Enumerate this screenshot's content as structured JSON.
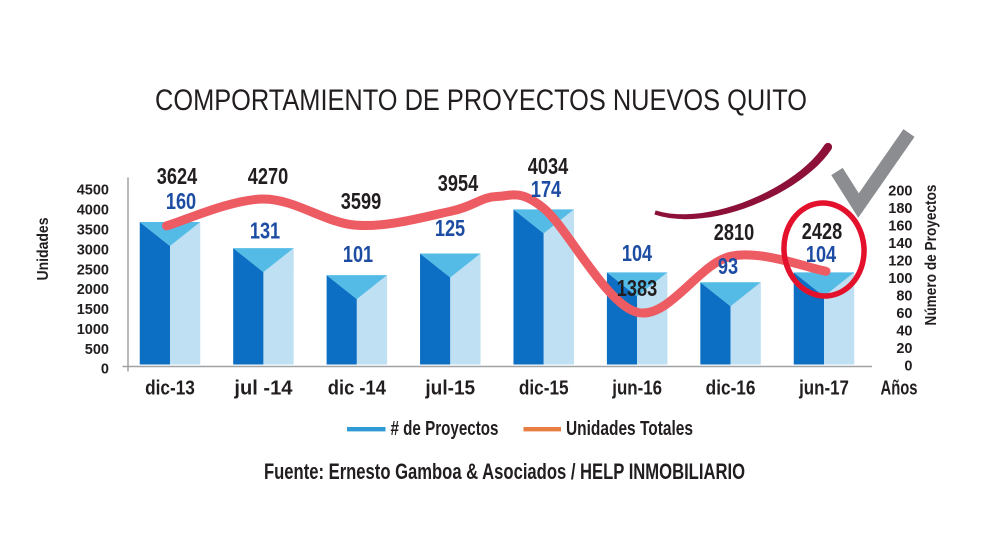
{
  "title": "COMPORTAMIENTO DE PROYECTOS NUEVOS QUITO",
  "footer": "Fuente: Ernesto Gamboa & Asociados / HELP INMOBILIARIO",
  "chart_data": {
    "type": "bar",
    "subtype": "combo-bar-line",
    "categories": [
      "dic-13",
      "jul -14",
      "dic -14",
      "jul-15",
      "dic-15",
      "jun-16",
      "dic-16",
      "jun-17"
    ],
    "series": [
      {
        "name": "# de Proyectos",
        "type": "bar",
        "axis": "right",
        "values": [
          160,
          131,
          101,
          125,
          174,
          104,
          93,
          104
        ]
      },
      {
        "name": "Unidades Totales",
        "type": "line",
        "axis": "left",
        "values": [
          3624,
          4270,
          3599,
          3954,
          4034,
          1383,
          2810,
          2428
        ]
      }
    ],
    "title": "COMPORTAMIENTO DE PROYECTOS NUEVOS QUITO",
    "xlabel": "Años",
    "left_axis": {
      "label": "Unidades",
      "min": 0,
      "max": 4500,
      "step": 500
    },
    "right_axis": {
      "label": "Número de Proyectos",
      "min": 0,
      "max": 200,
      "step": 20
    },
    "grid": false,
    "legend_position": "bottom",
    "annotations": {
      "highlight_circle_category": "jun-17",
      "checkmark": true,
      "growth_swoosh": true
    }
  },
  "colors": {
    "bar_front": "#0d6fc3",
    "bar_side": "#bfe0f2",
    "bar_top": "#53bbe6",
    "trend_line": "#ee5c63",
    "value_label_units": "#221e1f",
    "value_label_projects": "#1d4ca3",
    "legend_projects_swatch": "#2e9bd5",
    "legend_units_swatch": "#e87e42",
    "swoosh": "#8c1038",
    "checkmark": "#8b8d90",
    "highlight_ellipse": "#e3112c",
    "axis": "#a0a2a5",
    "text": "#221e1f"
  }
}
